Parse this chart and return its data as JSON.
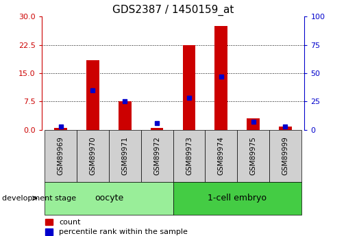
{
  "title": "GDS2387 / 1450159_at",
  "samples": [
    "GSM89969",
    "GSM89970",
    "GSM89971",
    "GSM89972",
    "GSM89973",
    "GSM89974",
    "GSM89975",
    "GSM89999"
  ],
  "count_values": [
    0.5,
    18.5,
    7.5,
    0.5,
    22.5,
    27.5,
    3.0,
    0.8
  ],
  "percentile_left": [
    0.8,
    10.5,
    7.5,
    1.8,
    8.5,
    14.0,
    2.2,
    0.8
  ],
  "groups": [
    {
      "label": "oocyte",
      "start": 0,
      "end": 4,
      "color": "#99ee99"
    },
    {
      "label": "1-cell embryo",
      "start": 4,
      "end": 8,
      "color": "#44cc44"
    }
  ],
  "ylim_left": [
    0,
    30
  ],
  "ylim_right": [
    0,
    100
  ],
  "yticks_left": [
    0,
    7.5,
    15,
    22.5,
    30
  ],
  "yticks_right": [
    0,
    25,
    50,
    75,
    100
  ],
  "bar_color_red": "#cc0000",
  "marker_color_blue": "#0000cc",
  "red_bar_width": 0.4,
  "left_axis_color": "#cc0000",
  "right_axis_color": "#0000cc",
  "xlabel_group": "development stage",
  "legend_count": "count",
  "legend_pct": "percentile rank within the sample",
  "sample_box_color": "#d0d0d0",
  "title_fontsize": 11
}
